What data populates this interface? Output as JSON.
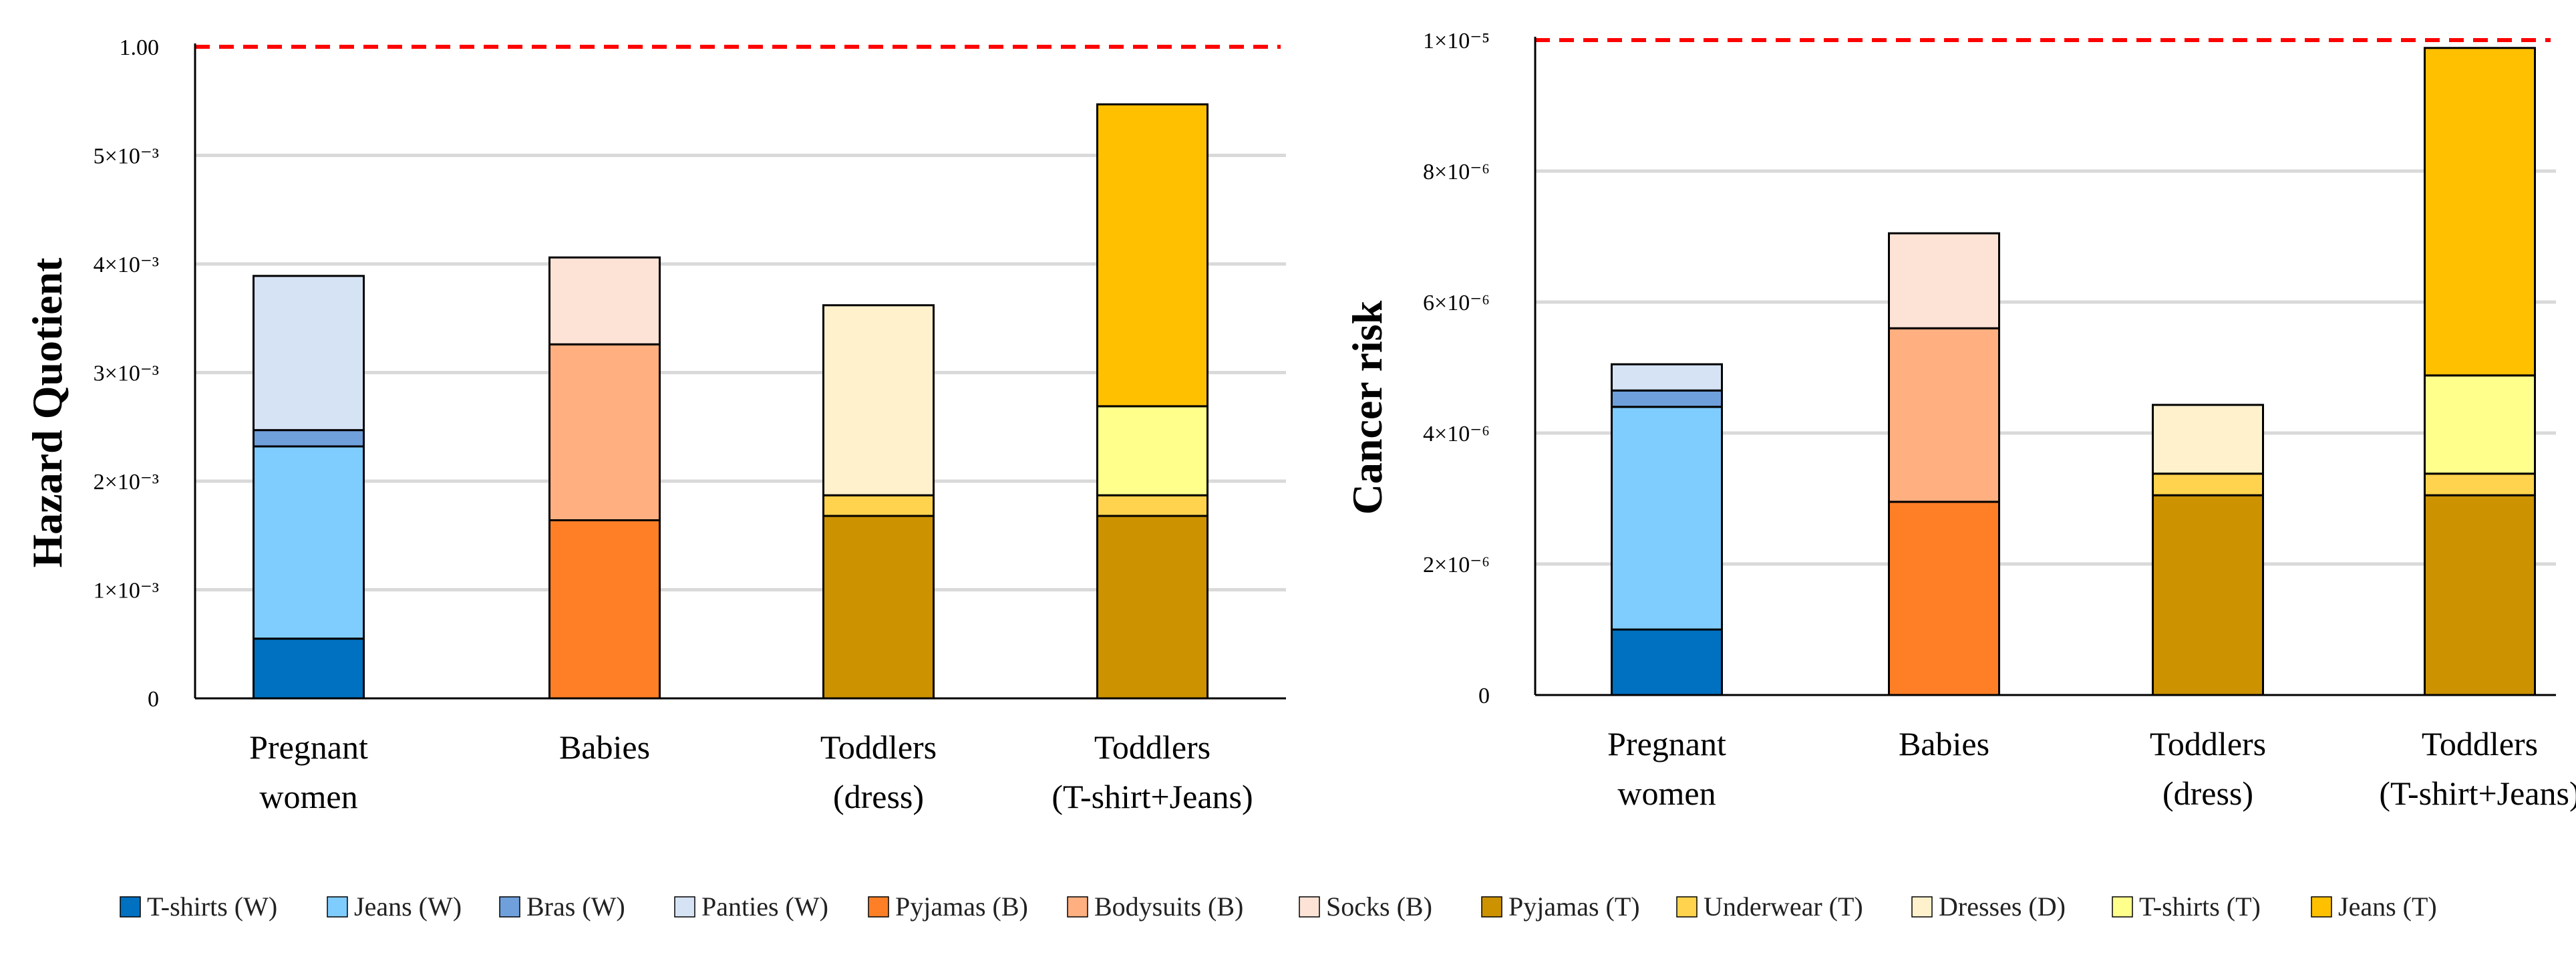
{
  "chart_data": [
    {
      "type": "bar",
      "stacked": true,
      "ylabel": "Hazard Quotient",
      "categories": [
        "Pregnant\nwomen",
        "Babies",
        "Toddlers\n(dress)",
        "Toddlers\n(T-shirt+Jeans)"
      ],
      "scale_unit": 0.001,
      "ytick_labels": [
        "0",
        "1×10⁻³",
        "2×10⁻³",
        "3×10⁻³",
        "4×10⁻³",
        "5×10⁻³",
        "1.00"
      ],
      "ylim": [
        0,
        6
      ],
      "reference_line": 6,
      "series": [
        {
          "name": "T-shirts (W)",
          "values": [
            0.55,
            0,
            0,
            0
          ]
        },
        {
          "name": "Jeans (W)",
          "values": [
            1.77,
            0,
            0,
            0
          ]
        },
        {
          "name": "Bras (W)",
          "values": [
            0.15,
            0,
            0,
            0
          ]
        },
        {
          "name": "Panties (W)",
          "values": [
            1.42,
            0,
            0,
            0
          ]
        },
        {
          "name": "Pyjamas (B)",
          "values": [
            0,
            1.64,
            0,
            0
          ]
        },
        {
          "name": "Bodysuits (B)",
          "values": [
            0,
            1.62,
            0,
            0
          ]
        },
        {
          "name": "Socks (B)",
          "values": [
            0,
            0.8,
            0,
            0
          ]
        },
        {
          "name": "Pyjamas (T)",
          "values": [
            0,
            0,
            1.68,
            1.68
          ]
        },
        {
          "name": "Underwear (T)",
          "values": [
            0,
            0,
            0.19,
            0.19
          ]
        },
        {
          "name": "Dresses (D)",
          "values": [
            0,
            0,
            1.75,
            0
          ]
        },
        {
          "name": "T-shirts (T)",
          "values": [
            0,
            0,
            0,
            0.82
          ]
        },
        {
          "name": "Jeans (T)",
          "values": [
            0,
            0,
            0,
            2.78
          ]
        }
      ]
    },
    {
      "type": "bar",
      "stacked": true,
      "ylabel": "Cancer risk",
      "categories": [
        "Pregnant\nwomen",
        "Babies",
        "Toddlers\n(dress)",
        "Toddlers\n(T-shirt+Jeans)"
      ],
      "scale_unit": 1e-06,
      "ytick_labels": [
        "0",
        "2×10⁻⁶",
        "4×10⁻⁶",
        "6×10⁻⁶",
        "8×10⁻⁶",
        "1×10⁻⁵"
      ],
      "ylim": [
        0,
        10
      ],
      "reference_line": 10,
      "series": [
        {
          "name": "T-shirts (W)",
          "values": [
            1.0,
            0,
            0,
            0
          ]
        },
        {
          "name": "Jeans (W)",
          "values": [
            3.4,
            0,
            0,
            0
          ]
        },
        {
          "name": "Bras (W)",
          "values": [
            0.25,
            0,
            0,
            0
          ]
        },
        {
          "name": "Panties (W)",
          "values": [
            0.4,
            0,
            0,
            0
          ]
        },
        {
          "name": "Pyjamas (B)",
          "values": [
            0,
            2.95,
            0,
            0
          ]
        },
        {
          "name": "Bodysuits (B)",
          "values": [
            0,
            2.65,
            0,
            0
          ]
        },
        {
          "name": "Socks (B)",
          "values": [
            0,
            1.45,
            0,
            0
          ]
        },
        {
          "name": "Pyjamas (T)",
          "values": [
            0,
            0,
            3.05,
            3.05
          ]
        },
        {
          "name": "Underwear (T)",
          "values": [
            0,
            0,
            0.33,
            0.33
          ]
        },
        {
          "name": "Dresses (D)",
          "values": [
            0,
            0,
            1.05,
            0
          ]
        },
        {
          "name": "T-shirts (T)",
          "values": [
            0,
            0,
            0,
            1.5
          ]
        },
        {
          "name": "Jeans (T)",
          "values": [
            0,
            0,
            0,
            5.0
          ]
        }
      ]
    }
  ],
  "legend": [
    {
      "label": "T-shirts (W)",
      "color": "#0070C0"
    },
    {
      "label": "Jeans (W)",
      "color": "#7FCCFF"
    },
    {
      "label": "Bras (W)",
      "color": "#6FA0DC"
    },
    {
      "label": "Panties (W)",
      "color": "#D5E3F5"
    },
    {
      "label": "Pyjamas (B)",
      "color": "#FF7F27"
    },
    {
      "label": "Bodysuits (B)",
      "color": "#FFAF80"
    },
    {
      "label": "Socks (B)",
      "color": "#FDE3D6"
    },
    {
      "label": "Pyjamas (T)",
      "color": "#CC9200"
    },
    {
      "label": "Underwear (T)",
      "color": "#FFD34D"
    },
    {
      "label": "Dresses (D)",
      "color": "#FFF1CC"
    },
    {
      "label": "T-shirts (T)",
      "color": "#FFFF8C"
    },
    {
      "label": "Jeans (T)",
      "color": "#FFC000"
    }
  ],
  "colors": {
    "reference_line": "#FF0000",
    "grid": "#D9D9D9",
    "axis": "#000000"
  }
}
